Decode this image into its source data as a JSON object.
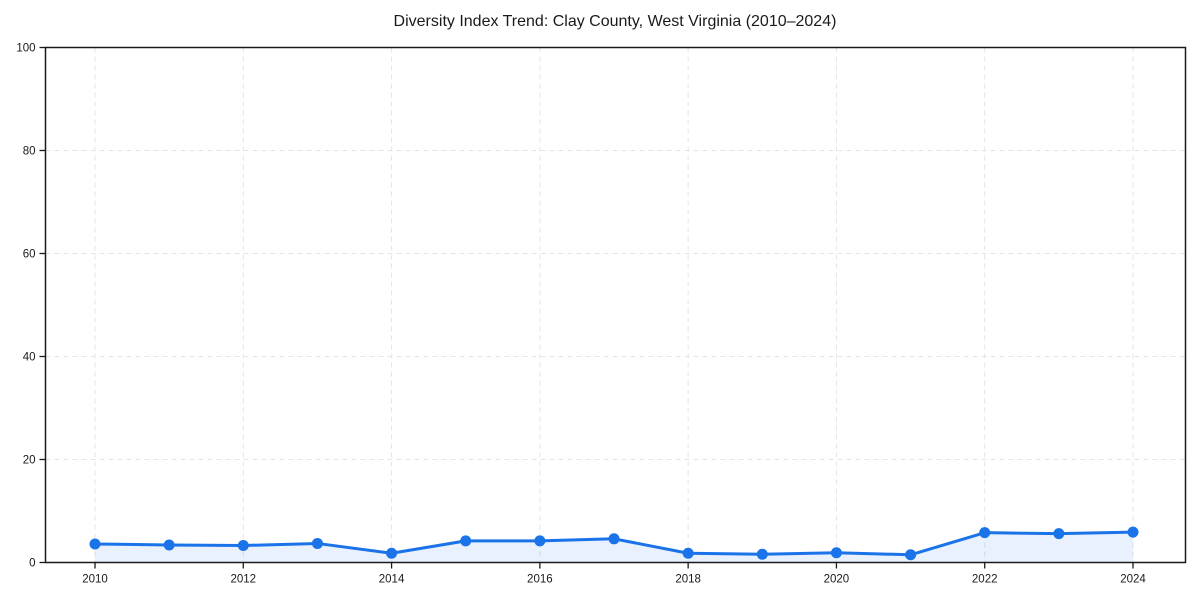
{
  "chart_data": {
    "type": "line",
    "title": "Diversity Index Trend: Clay County, West Virginia (2010–2024)",
    "series_name": "Diversity Index",
    "x": [
      2010,
      2011,
      2012,
      2013,
      2014,
      2015,
      2016,
      2017,
      2018,
      2019,
      2020,
      2021,
      2022,
      2023,
      2024
    ],
    "values": [
      3.6,
      3.4,
      3.3,
      3.7,
      1.8,
      4.2,
      4.2,
      4.6,
      1.8,
      1.6,
      1.9,
      1.5,
      5.8,
      5.6,
      5.9
    ],
    "xlabel": "",
    "ylabel": "",
    "xlim": [
      2009.3,
      2024.7
    ],
    "ylim": [
      0,
      100
    ],
    "yticks": [
      0,
      20,
      40,
      60,
      80,
      100
    ],
    "xticks": [
      2010,
      2012,
      2014,
      2016,
      2018,
      2020,
      2022,
      2024
    ],
    "grid": "dashed, light gray, horizontal at yticks and vertical at xticks",
    "legend": false,
    "marker": "circle",
    "area_fill": true
  },
  "colors": {
    "line": "#1a73e8",
    "marker": "#1a73e8",
    "area": "#1a73e8",
    "area_opacity": "0.10",
    "grid": "#e4e4e4",
    "frame": "#1a1a1a",
    "tick_text": "#1a1a1a"
  }
}
